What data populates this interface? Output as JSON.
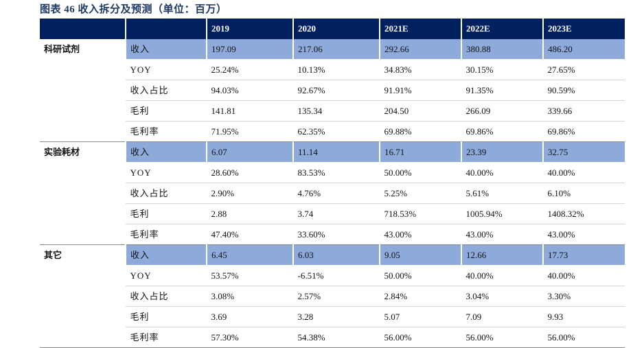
{
  "title": "图表 46   收入拆分及预测（单位：百万）",
  "header": [
    "",
    "",
    "2019",
    "2020",
    "2021E",
    "2022E",
    "2023E"
  ],
  "groups": [
    {
      "name": "科研试剂",
      "rows": [
        {
          "metric": "收入",
          "values": [
            "197.09",
            "217.06",
            "292.66",
            "380.88",
            "486.20"
          ]
        },
        {
          "metric": "YOY",
          "values": [
            "25.24%",
            "10.13%",
            "34.83%",
            "30.15%",
            "27.65%"
          ]
        },
        {
          "metric": "收入占比",
          "values": [
            "94.03%",
            "92.67%",
            "91.91%",
            "91.35%",
            "90.59%"
          ]
        },
        {
          "metric": "毛利",
          "values": [
            "141.81",
            "135.34",
            "204.50",
            "266.09",
            "339.66"
          ]
        },
        {
          "metric": "毛利率",
          "values": [
            "71.95%",
            "62.35%",
            "69.88%",
            "69.86%",
            "69.86%"
          ]
        }
      ]
    },
    {
      "name": "实验耗材",
      "rows": [
        {
          "metric": "收入",
          "values": [
            "6.07",
            "11.14",
            "16.71",
            "23.39",
            "32.75"
          ]
        },
        {
          "metric": "YOY",
          "values": [
            "28.60%",
            "83.53%",
            "50.00%",
            "40.00%",
            "40.00%"
          ]
        },
        {
          "metric": "收入占比",
          "values": [
            "2.90%",
            "4.76%",
            "5.25%",
            "5.61%",
            "6.10%"
          ]
        },
        {
          "metric": "毛利",
          "values": [
            "2.88",
            "3.74",
            "718.53%",
            "1005.94%",
            "1408.32%"
          ]
        },
        {
          "metric": "毛利率",
          "values": [
            "47.40%",
            "33.60%",
            "43.00%",
            "43.00%",
            "43.00%"
          ]
        }
      ]
    },
    {
      "name": "其它",
      "rows": [
        {
          "metric": "收入",
          "values": [
            "6.45",
            "6.03",
            "9.05",
            "12.66",
            "17.73"
          ]
        },
        {
          "metric": "YOY",
          "values": [
            "53.57%",
            "-6.51%",
            "50.00%",
            "40.00%",
            "40.00%"
          ]
        },
        {
          "metric": "收入占比",
          "values": [
            "3.08%",
            "2.57%",
            "2.84%",
            "3.04%",
            "3.30%"
          ]
        },
        {
          "metric": "毛利",
          "values": [
            "3.69",
            "3.28",
            "5.07",
            "7.09",
            "9.93"
          ]
        },
        {
          "metric": "毛利率",
          "values": [
            "57.30%",
            "54.38%",
            "56.00%",
            "56.00%",
            "56.00%"
          ]
        }
      ]
    }
  ]
}
